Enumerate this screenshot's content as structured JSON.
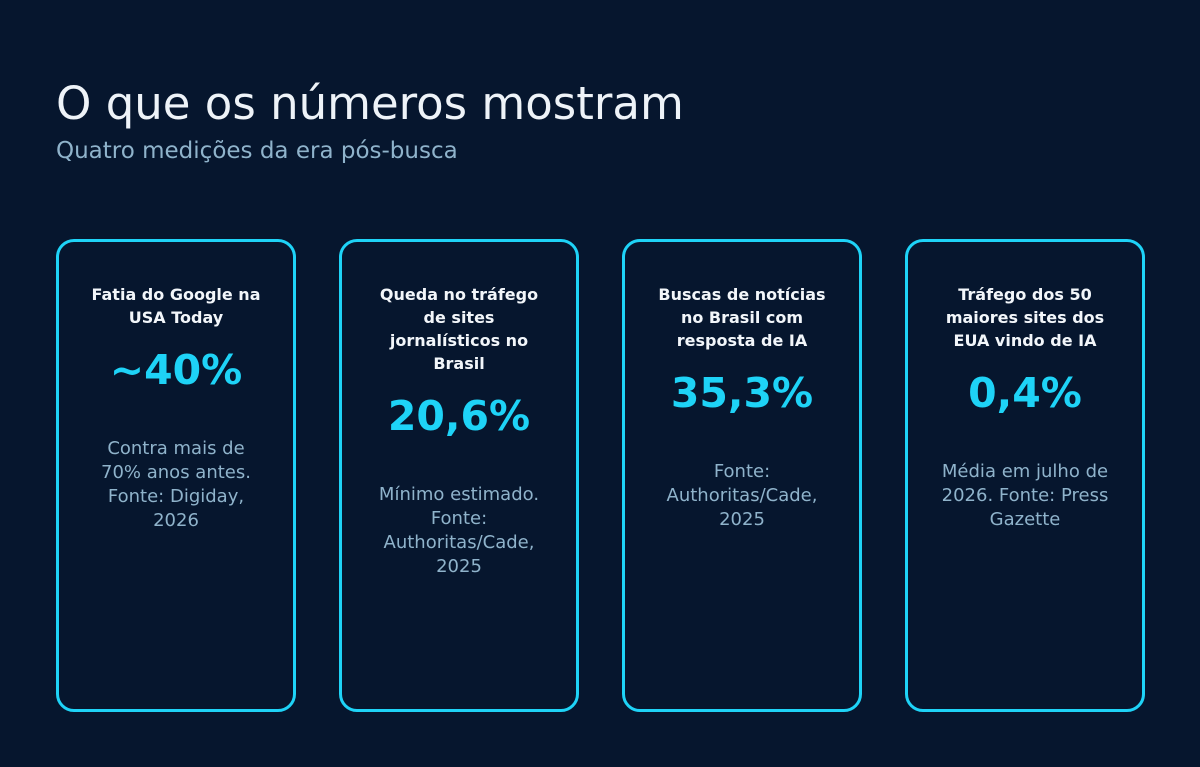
{
  "header": {
    "title": "O que os números mostram",
    "subtitle": "Quatro medições da era pós-busca"
  },
  "cards": [
    {
      "label": "Fatia do Google na USA Today",
      "value": "~40%",
      "note": "Contra mais de 70% anos antes. Fonte: Digiday, 2026"
    },
    {
      "label": "Queda no tráfego de sites jornalísticos no Brasil",
      "value": "20,6%",
      "note": "Mínimo estimado. Fonte: Authoritas/Cade, 2025"
    },
    {
      "label": "Buscas de notícias no Brasil com resposta de IA",
      "value": "35,3%",
      "note": "Fonte: Authoritas/Cade, 2025"
    },
    {
      "label": "Tráfego dos 50 maiores sites dos EUA vindo de IA",
      "value": "0,4%",
      "note": "Média em julho de 2026. Fonte: Press Gazette"
    }
  ],
  "colors": {
    "background": "#06162e",
    "accent": "#1ed3f7",
    "muted": "#8fb3cb"
  }
}
